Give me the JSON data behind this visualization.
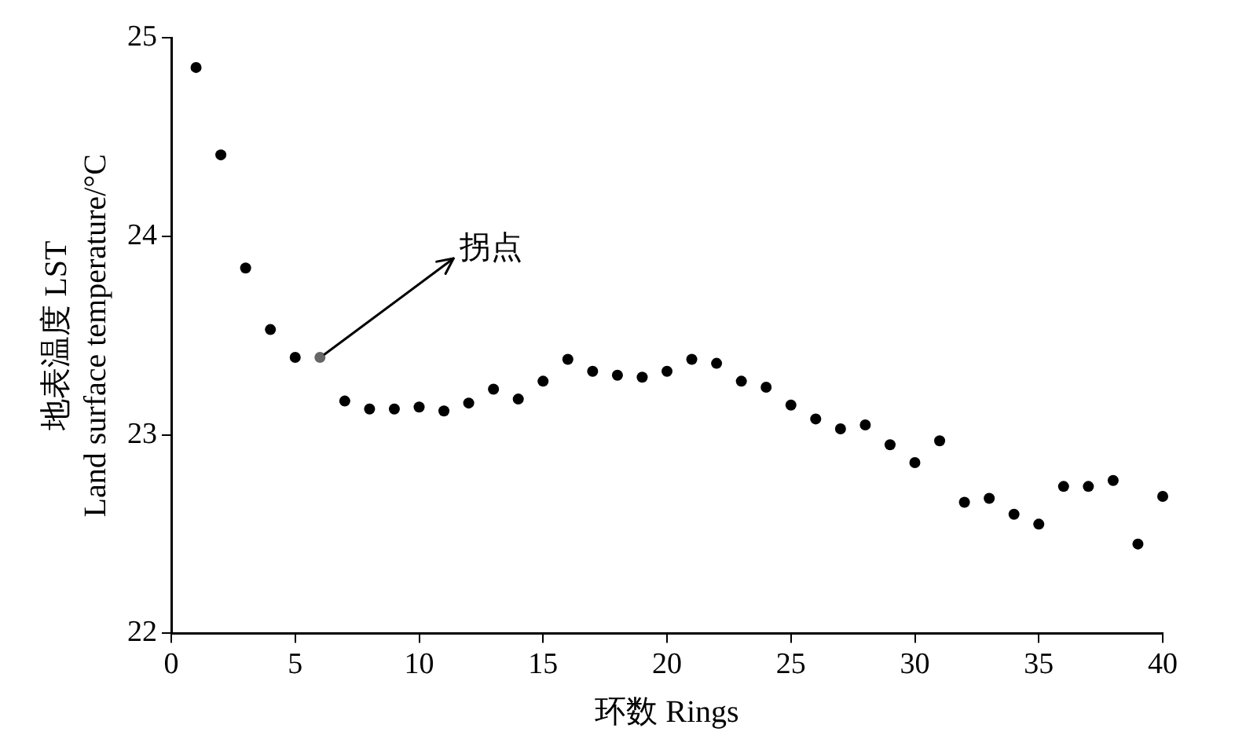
{
  "chart_data": {
    "type": "scatter",
    "xlabel": "环数 Rings",
    "ylabel": "地表温度 LST\nLand surface temperature/°C",
    "x": [
      1,
      2,
      3,
      4,
      5,
      6,
      7,
      8,
      9,
      10,
      11,
      12,
      13,
      14,
      15,
      16,
      17,
      18,
      19,
      20,
      21,
      22,
      23,
      24,
      25,
      26,
      27,
      28,
      29,
      30,
      31,
      32,
      33,
      34,
      35,
      36,
      37,
      38,
      39,
      40
    ],
    "values": [
      24.85,
      24.41,
      23.84,
      23.53,
      23.39,
      23.39,
      23.17,
      23.13,
      23.13,
      23.14,
      23.12,
      23.16,
      23.23,
      23.18,
      23.27,
      23.38,
      23.32,
      23.3,
      23.29,
      23.32,
      23.38,
      23.36,
      23.27,
      23.24,
      23.15,
      23.08,
      23.03,
      23.05,
      22.95,
      22.86,
      22.97,
      22.66,
      22.68,
      22.6,
      22.55,
      22.74,
      22.74,
      22.77,
      22.45,
      22.69
    ],
    "colors": [
      "#000000",
      "#000000",
      "#000000",
      "#000000",
      "#000000",
      "#666666",
      "#000000",
      "#000000",
      "#000000",
      "#000000",
      "#000000",
      "#000000",
      "#000000",
      "#000000",
      "#000000",
      "#000000",
      "#000000",
      "#000000",
      "#000000",
      "#000000",
      "#000000",
      "#000000",
      "#000000",
      "#000000",
      "#000000",
      "#000000",
      "#000000",
      "#000000",
      "#000000",
      "#000000",
      "#000000",
      "#000000",
      "#000000",
      "#000000",
      "#000000",
      "#000000",
      "#000000",
      "#000000",
      "#000000",
      "#000000"
    ],
    "marker": "circle",
    "xlim": [
      0,
      40
    ],
    "xticks": [
      0,
      5,
      10,
      15,
      20,
      25,
      30,
      35,
      40
    ],
    "ylim": [
      22,
      25
    ],
    "yticks": [
      22,
      23,
      24,
      25
    ],
    "annotations": [
      {
        "text": "拐点",
        "x": 6,
        "y": 23.39
      }
    ],
    "grid": false,
    "legend": false
  }
}
